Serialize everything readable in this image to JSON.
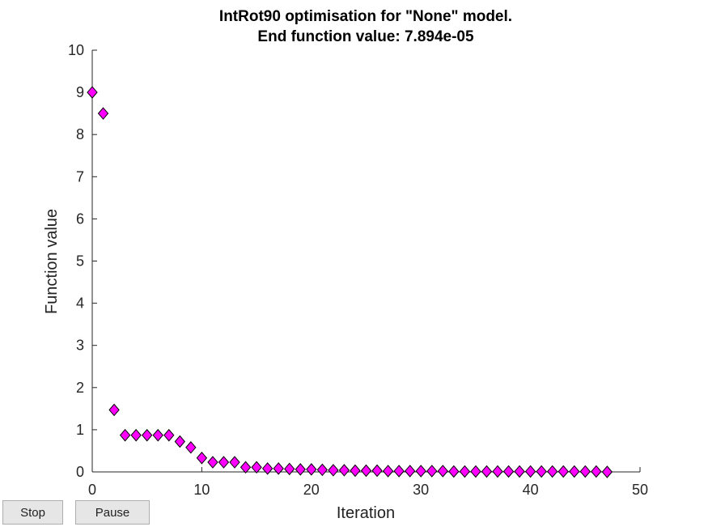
{
  "chart_data": {
    "type": "scatter",
    "title": "IntRot90 optimisation for \"None\" model.",
    "subtitle": "End function value: 7.894e-05",
    "xlabel": "Iteration",
    "ylabel": "Function value",
    "xlim": [
      0,
      50
    ],
    "ylim": [
      0,
      10
    ],
    "xticks": [
      0,
      10,
      20,
      30,
      40,
      50
    ],
    "yticks": [
      0,
      1,
      2,
      3,
      4,
      5,
      6,
      7,
      8,
      9,
      10
    ],
    "grid": false,
    "marker": "diamond",
    "marker_color": "#ff00ff",
    "marker_edge_color": "#000000",
    "x": [
      0,
      1,
      2,
      3,
      4,
      5,
      6,
      7,
      8,
      9,
      10,
      11,
      12,
      13,
      14,
      15,
      16,
      17,
      18,
      19,
      20,
      21,
      22,
      23,
      24,
      25,
      26,
      27,
      28,
      29,
      30,
      31,
      32,
      33,
      34,
      35,
      36,
      37,
      38,
      39,
      40,
      41,
      42,
      43,
      44,
      45,
      46,
      47
    ],
    "y": [
      9.0,
      8.5,
      1.47,
      0.87,
      0.87,
      0.87,
      0.87,
      0.87,
      0.72,
      0.58,
      0.33,
      0.23,
      0.23,
      0.23,
      0.11,
      0.11,
      0.08,
      0.08,
      0.07,
      0.06,
      0.06,
      0.05,
      0.04,
      0.04,
      0.03,
      0.03,
      0.03,
      0.02,
      0.02,
      0.02,
      0.02,
      0.02,
      0.02,
      0.01,
      0.01,
      0.01,
      0.01,
      0.01,
      0.01,
      0.01,
      0.01,
      0.01,
      0.01,
      0.01,
      0.01,
      0.01,
      0.01,
      0.0001
    ]
  },
  "controls": {
    "stop_label": "Stop",
    "pause_label": "Pause"
  }
}
